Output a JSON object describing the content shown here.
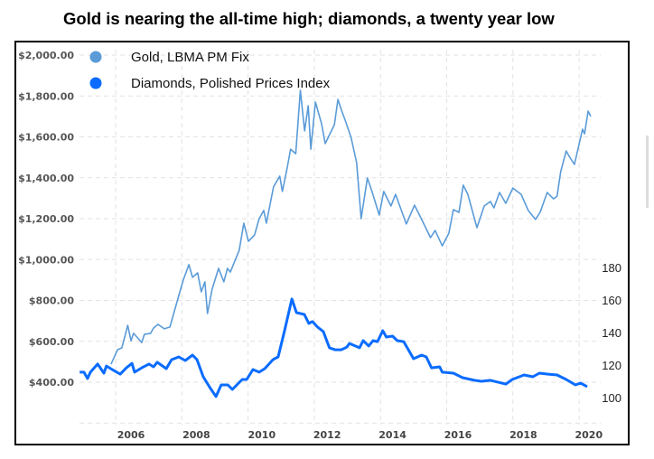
{
  "chart_data": {
    "type": "line",
    "title": "Gold is nearing the all-time high; diamonds, a twenty year low",
    "legend_position": "top-left",
    "grid": true,
    "x_ticks": [
      "2006",
      "2008",
      "2010",
      "2012",
      "2014",
      "2016",
      "2018",
      "2020"
    ],
    "x_range": [
      2004.4,
      2020.4
    ],
    "y_left": {
      "ticks": [
        "$2,000.00",
        "$1,800.00",
        "$1,600.00",
        "$1,400.00",
        "$1,200.00",
        "$1,000.00",
        "$800.00",
        "$600.00",
        "$400.00"
      ],
      "range": [
        200,
        2000
      ]
    },
    "y_right": {
      "ticks": [
        "180",
        "160",
        "140",
        "120",
        "100"
      ],
      "range": [
        80,
        180
      ]
    },
    "series": [
      {
        "name": "Gold, LBMA PM Fix",
        "axis": "left",
        "color": "#5a9bd8",
        "points": [
          [
            2005.39,
            488
          ],
          [
            2005.59,
            559
          ],
          [
            2005.72,
            568
          ],
          [
            2005.9,
            678
          ],
          [
            2006.0,
            603
          ],
          [
            2006.08,
            639
          ],
          [
            2006.33,
            594
          ],
          [
            2006.41,
            634
          ],
          [
            2006.6,
            639
          ],
          [
            2006.69,
            665
          ],
          [
            2006.83,
            683
          ],
          [
            2007.02,
            661
          ],
          [
            2007.19,
            670
          ],
          [
            2007.44,
            811
          ],
          [
            2007.6,
            900
          ],
          [
            2007.77,
            975
          ],
          [
            2007.88,
            913
          ],
          [
            2008.04,
            935
          ],
          [
            2008.15,
            842
          ],
          [
            2008.26,
            891
          ],
          [
            2008.34,
            736
          ],
          [
            2008.48,
            855
          ],
          [
            2008.68,
            957
          ],
          [
            2008.84,
            891
          ],
          [
            2008.95,
            957
          ],
          [
            2009.04,
            939
          ],
          [
            2009.31,
            1045
          ],
          [
            2009.45,
            1178
          ],
          [
            2009.59,
            1089
          ],
          [
            2009.78,
            1120
          ],
          [
            2009.92,
            1200
          ],
          [
            2010.06,
            1240
          ],
          [
            2010.14,
            1178
          ],
          [
            2010.36,
            1355
          ],
          [
            2010.55,
            1408
          ],
          [
            2010.63,
            1333
          ],
          [
            2010.77,
            1443
          ],
          [
            2010.88,
            1540
          ],
          [
            2011.04,
            1518
          ],
          [
            2011.18,
            1828
          ],
          [
            2011.31,
            1629
          ],
          [
            2011.42,
            1752
          ],
          [
            2011.5,
            1540
          ],
          [
            2011.64,
            1770
          ],
          [
            2011.83,
            1664
          ],
          [
            2011.94,
            1567
          ],
          [
            2012.22,
            1660
          ],
          [
            2012.33,
            1783
          ],
          [
            2012.44,
            1730
          ],
          [
            2012.57,
            1673
          ],
          [
            2012.73,
            1598
          ],
          [
            2012.9,
            1474
          ],
          [
            2013.04,
            1200
          ],
          [
            2013.23,
            1399
          ],
          [
            2013.37,
            1333
          ],
          [
            2013.59,
            1218
          ],
          [
            2013.73,
            1333
          ],
          [
            2013.95,
            1262
          ],
          [
            2014.09,
            1319
          ],
          [
            2014.42,
            1174
          ],
          [
            2014.67,
            1266
          ],
          [
            2014.89,
            1196
          ],
          [
            2015.16,
            1107
          ],
          [
            2015.3,
            1142
          ],
          [
            2015.52,
            1067
          ],
          [
            2015.72,
            1129
          ],
          [
            2015.86,
            1244
          ],
          [
            2016.03,
            1231
          ],
          [
            2016.16,
            1364
          ],
          [
            2016.3,
            1319
          ],
          [
            2016.58,
            1156
          ],
          [
            2016.8,
            1262
          ],
          [
            2016.99,
            1284
          ],
          [
            2017.1,
            1253
          ],
          [
            2017.27,
            1328
          ],
          [
            2017.46,
            1275
          ],
          [
            2017.68,
            1350
          ],
          [
            2017.93,
            1319
          ],
          [
            2018.15,
            1240
          ],
          [
            2018.37,
            1196
          ],
          [
            2018.51,
            1231
          ],
          [
            2018.73,
            1328
          ],
          [
            2018.92,
            1297
          ],
          [
            2019.03,
            1310
          ],
          [
            2019.14,
            1430
          ],
          [
            2019.31,
            1531
          ],
          [
            2019.4,
            1505
          ],
          [
            2019.56,
            1465
          ],
          [
            2019.81,
            1638
          ],
          [
            2019.87,
            1615
          ],
          [
            2019.98,
            1726
          ],
          [
            2020.06,
            1700
          ]
        ]
      },
      {
        "name": "Diamonds, Polished Prices Index",
        "axis": "right",
        "color": "#0a6cff",
        "points": [
          [
            2004.43,
            115.6
          ],
          [
            2004.56,
            115.6
          ],
          [
            2004.67,
            111.7
          ],
          [
            2004.76,
            115.6
          ],
          [
            2004.98,
            120.6
          ],
          [
            2005.17,
            115
          ],
          [
            2005.25,
            119.4
          ],
          [
            2005.53,
            116
          ],
          [
            2005.67,
            114.4
          ],
          [
            2005.86,
            118.3
          ],
          [
            2006.03,
            121
          ],
          [
            2006.11,
            115.6
          ],
          [
            2006.33,
            118.3
          ],
          [
            2006.55,
            120.6
          ],
          [
            2006.69,
            118.9
          ],
          [
            2006.8,
            121.7
          ],
          [
            2007.08,
            117.8
          ],
          [
            2007.24,
            123.3
          ],
          [
            2007.46,
            125
          ],
          [
            2007.66,
            122.8
          ],
          [
            2007.88,
            126.1
          ],
          [
            2008.02,
            123.3
          ],
          [
            2008.21,
            112.8
          ],
          [
            2008.43,
            105.6
          ],
          [
            2008.6,
            100.6
          ],
          [
            2008.76,
            107.8
          ],
          [
            2008.96,
            107.8
          ],
          [
            2009.1,
            105
          ],
          [
            2009.4,
            111.1
          ],
          [
            2009.54,
            111.1
          ],
          [
            2009.73,
            117.2
          ],
          [
            2009.92,
            115.6
          ],
          [
            2010.09,
            117.8
          ],
          [
            2010.34,
            123.3
          ],
          [
            2010.5,
            125
          ],
          [
            2010.69,
            140.6
          ],
          [
            2010.92,
            160.6
          ],
          [
            2011.06,
            152.2
          ],
          [
            2011.3,
            151.1
          ],
          [
            2011.44,
            145.6
          ],
          [
            2011.55,
            146.7
          ],
          [
            2011.71,
            143.3
          ],
          [
            2011.88,
            140.6
          ],
          [
            2012.07,
            130.6
          ],
          [
            2012.24,
            129.4
          ],
          [
            2012.43,
            129.4
          ],
          [
            2012.6,
            131
          ],
          [
            2012.68,
            133.3
          ],
          [
            2012.99,
            130.6
          ],
          [
            2013.1,
            135
          ],
          [
            2013.27,
            131.7
          ],
          [
            2013.4,
            135
          ],
          [
            2013.54,
            134.4
          ],
          [
            2013.7,
            141.1
          ],
          [
            2013.81,
            137.2
          ],
          [
            2014.0,
            137.8
          ],
          [
            2014.14,
            135
          ],
          [
            2014.34,
            134.4
          ],
          [
            2014.64,
            123.9
          ],
          [
            2014.89,
            126.1
          ],
          [
            2015.03,
            125
          ],
          [
            2015.19,
            118.3
          ],
          [
            2015.44,
            118.9
          ],
          [
            2015.52,
            115.6
          ],
          [
            2015.86,
            115
          ],
          [
            2016.14,
            112.2
          ],
          [
            2016.5,
            110.6
          ],
          [
            2016.72,
            110
          ],
          [
            2016.99,
            110.6
          ],
          [
            2017.46,
            108.3
          ],
          [
            2017.66,
            111.1
          ],
          [
            2018.02,
            113.9
          ],
          [
            2018.29,
            112.8
          ],
          [
            2018.49,
            115
          ],
          [
            2018.76,
            114.4
          ],
          [
            2019.03,
            113.9
          ],
          [
            2019.31,
            111.1
          ],
          [
            2019.59,
            107.8
          ],
          [
            2019.75,
            108.9
          ],
          [
            2019.95,
            106.7
          ]
        ]
      }
    ]
  }
}
